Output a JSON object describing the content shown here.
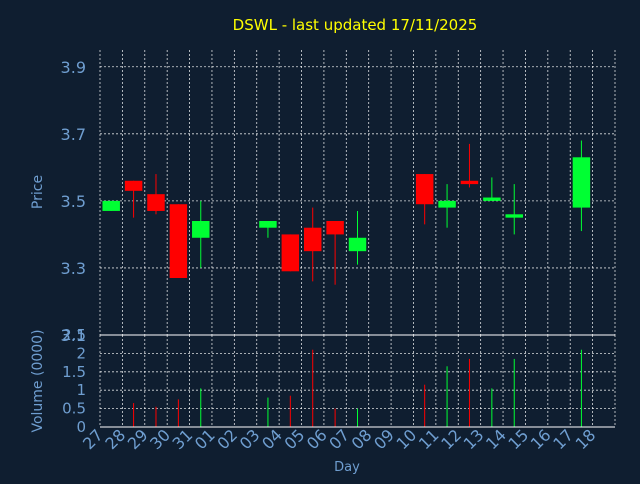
{
  "chart_data": {
    "type": "candlestick",
    "title": "DSWL - last updated 17/11/2025",
    "colors": {
      "background": "#0f1e30",
      "title": "#ffff00",
      "axis_text": "#6f9ed0",
      "grid": "#ffffff",
      "up": "#00ff33",
      "down": "#ff0000"
    },
    "x_tick_labels": [
      "27",
      "28",
      "29",
      "30",
      "31",
      "01",
      "02",
      "03",
      "04",
      "05",
      "06",
      "07",
      "08",
      "09",
      "10",
      "11",
      "12",
      "13",
      "14",
      "15",
      "16",
      "17",
      "18"
    ],
    "xlabel": "Day",
    "price_panel": {
      "ylabel": "Price",
      "ylim": [
        3.1,
        3.95
      ],
      "yticks": [
        3.1,
        3.3,
        3.5,
        3.7,
        3.9
      ],
      "yticklabels": [
        "3.1",
        "3.3",
        "3.5",
        "3.7",
        "3.9"
      ],
      "candles": [
        {
          "day": "27",
          "open": 3.47,
          "high": 3.5,
          "low": 3.47,
          "close": 3.5
        },
        {
          "day": "28",
          "open": 3.56,
          "high": 3.56,
          "low": 3.45,
          "close": 3.53
        },
        {
          "day": "29",
          "open": 3.52,
          "high": 3.58,
          "low": 3.46,
          "close": 3.47
        },
        {
          "day": "30",
          "open": 3.49,
          "high": 3.49,
          "low": 3.27,
          "close": 3.27
        },
        {
          "day": "31",
          "open": 3.39,
          "high": 3.5,
          "low": 3.3,
          "close": 3.44
        },
        {
          "day": "03",
          "open": 3.42,
          "high": 3.44,
          "low": 3.39,
          "close": 3.44
        },
        {
          "day": "04",
          "open": 3.4,
          "high": 3.4,
          "low": 3.29,
          "close": 3.29
        },
        {
          "day": "05",
          "open": 3.42,
          "high": 3.48,
          "low": 3.26,
          "close": 3.35
        },
        {
          "day": "06",
          "open": 3.44,
          "high": 3.44,
          "low": 3.25,
          "close": 3.4
        },
        {
          "day": "07",
          "open": 3.35,
          "high": 3.47,
          "low": 3.31,
          "close": 3.39
        },
        {
          "day": "10",
          "open": 3.58,
          "high": 3.58,
          "low": 3.43,
          "close": 3.49
        },
        {
          "day": "11",
          "open": 3.48,
          "high": 3.55,
          "low": 3.42,
          "close": 3.5
        },
        {
          "day": "12",
          "open": 3.56,
          "high": 3.67,
          "low": 3.54,
          "close": 3.55
        },
        {
          "day": "13",
          "open": 3.5,
          "high": 3.57,
          "low": 3.5,
          "close": 3.51
        },
        {
          "day": "14",
          "open": 3.45,
          "high": 3.55,
          "low": 3.4,
          "close": 3.46
        },
        {
          "day": "17",
          "open": 3.48,
          "high": 3.68,
          "low": 3.41,
          "close": 3.63
        }
      ]
    },
    "volume_panel": {
      "ylabel": "Volume (0000)",
      "ylim": [
        0,
        2.5
      ],
      "yticks": [
        0,
        0.5,
        1,
        1.5,
        2,
        2.5
      ],
      "yticklabels": [
        "0",
        "0.5",
        "1",
        "1.5",
        "2",
        "2.5"
      ],
      "bars": [
        {
          "day": "28",
          "value": 0.65,
          "direction": "down"
        },
        {
          "day": "29",
          "value": 0.55,
          "direction": "down"
        },
        {
          "day": "30",
          "value": 0.75,
          "direction": "down"
        },
        {
          "day": "31",
          "value": 1.05,
          "direction": "up"
        },
        {
          "day": "03",
          "value": 0.8,
          "direction": "up"
        },
        {
          "day": "04",
          "value": 0.85,
          "direction": "down"
        },
        {
          "day": "05",
          "value": 2.1,
          "direction": "down"
        },
        {
          "day": "06",
          "value": 0.5,
          "direction": "down"
        },
        {
          "day": "07",
          "value": 0.5,
          "direction": "up"
        },
        {
          "day": "10",
          "value": 1.15,
          "direction": "down"
        },
        {
          "day": "11",
          "value": 1.65,
          "direction": "up"
        },
        {
          "day": "12",
          "value": 1.85,
          "direction": "down"
        },
        {
          "day": "13",
          "value": 1.05,
          "direction": "up"
        },
        {
          "day": "14",
          "value": 1.85,
          "direction": "up"
        },
        {
          "day": "17",
          "value": 2.1,
          "direction": "up"
        }
      ]
    }
  }
}
